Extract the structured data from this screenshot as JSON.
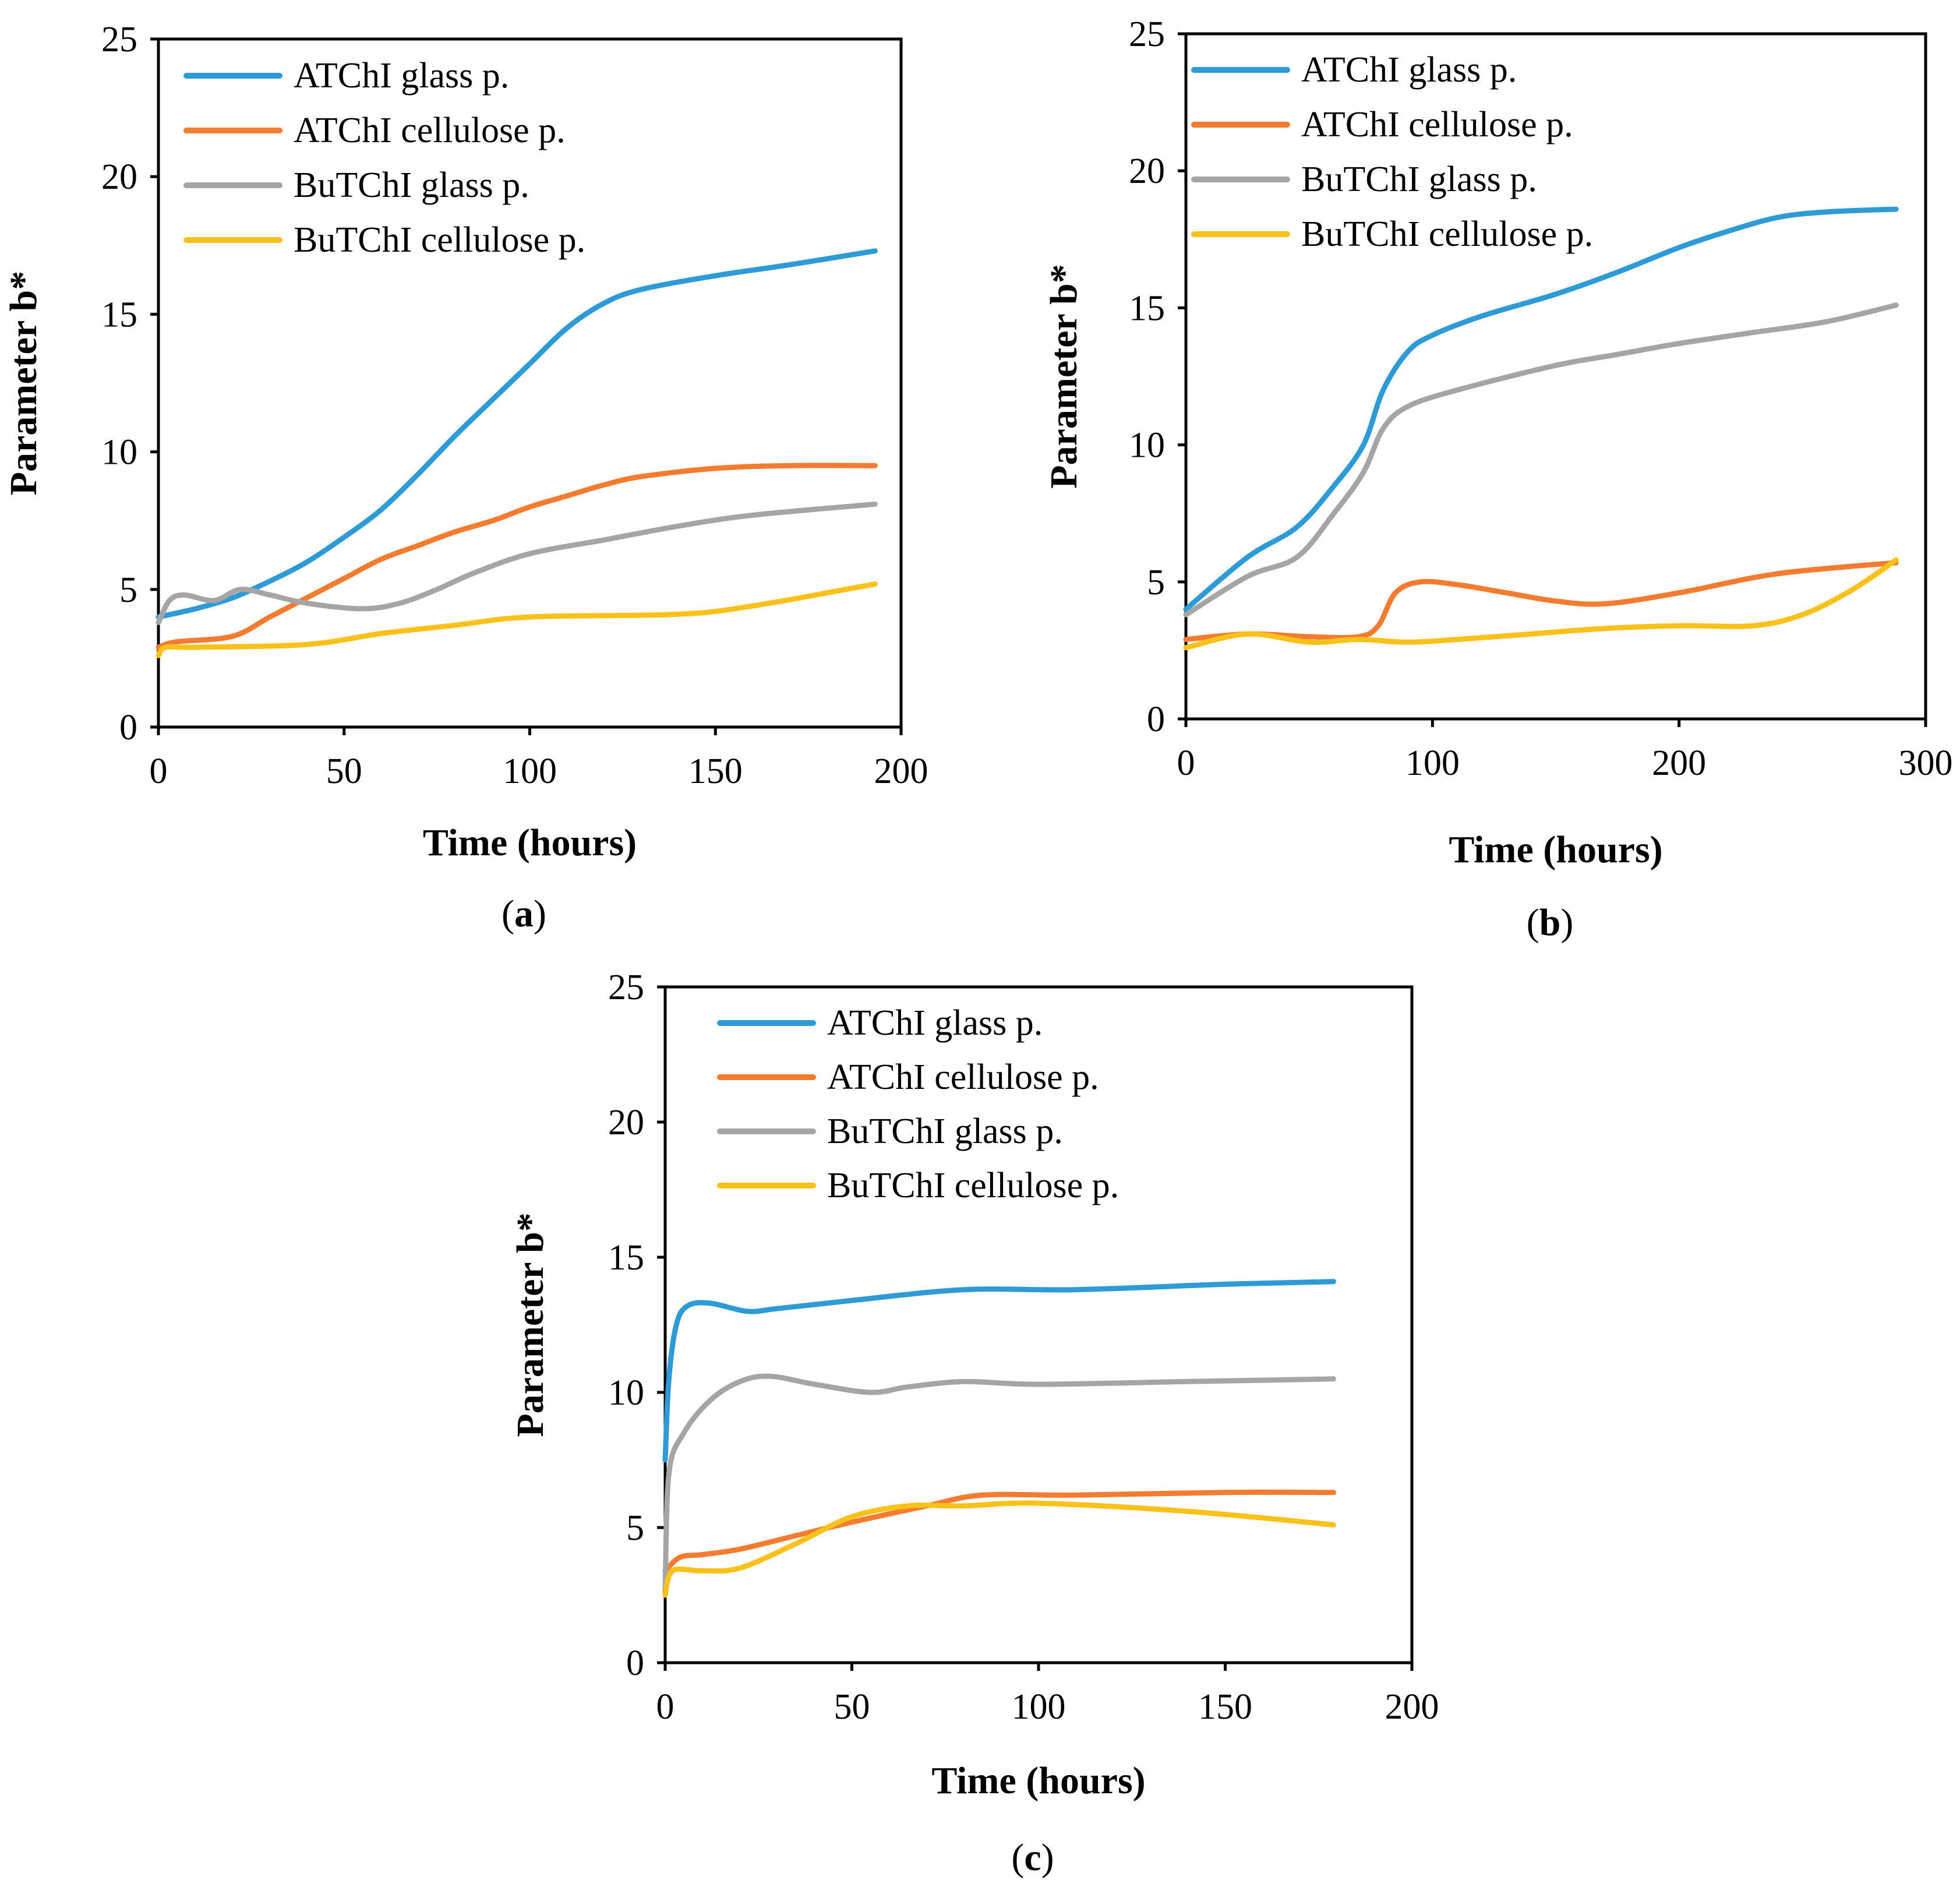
{
  "colors": {
    "atchi_glass": "#2E9BD6",
    "atchi_cellulose": "#F47C30",
    "butchi_glass": "#A5A5A5",
    "butchi_cellulose": "#FBC11B"
  },
  "chart_data": [
    {
      "type": "line",
      "panel_label": "a",
      "title": "",
      "xlabel": "Time (hours)",
      "ylabel": "Parameter b*",
      "xlim": [
        0,
        200
      ],
      "ylim": [
        0,
        25
      ],
      "xticks": [
        0,
        50,
        100,
        150,
        200
      ],
      "yticks": [
        0,
        5,
        10,
        15,
        20,
        25
      ],
      "legend_position": "top-left",
      "series": [
        {
          "name": "ATChI glass p.",
          "color_key": "atchi_glass",
          "points": [
            [
              0,
              4.0
            ],
            [
              10,
              4.3
            ],
            [
              20,
              4.7
            ],
            [
              30,
              5.3
            ],
            [
              40,
              6.0
            ],
            [
              50,
              6.9
            ],
            [
              60,
              7.9
            ],
            [
              70,
              9.2
            ],
            [
              80,
              10.6
            ],
            [
              90,
              11.9
            ],
            [
              100,
              13.2
            ],
            [
              110,
              14.5
            ],
            [
              120,
              15.4
            ],
            [
              130,
              15.9
            ],
            [
              150,
              16.4
            ],
            [
              170,
              16.8
            ],
            [
              193,
              17.3
            ]
          ]
        },
        {
          "name": "ATChI cellulose p.",
          "color_key": "atchi_cellulose",
          "points": [
            [
              0,
              2.9
            ],
            [
              5,
              3.1
            ],
            [
              20,
              3.3
            ],
            [
              30,
              4.0
            ],
            [
              40,
              4.7
            ],
            [
              50,
              5.4
            ],
            [
              60,
              6.1
            ],
            [
              70,
              6.6
            ],
            [
              80,
              7.1
            ],
            [
              90,
              7.5
            ],
            [
              100,
              8.0
            ],
            [
              110,
              8.4
            ],
            [
              120,
              8.8
            ],
            [
              130,
              9.1
            ],
            [
              150,
              9.4
            ],
            [
              170,
              9.5
            ],
            [
              193,
              9.5
            ]
          ]
        },
        {
          "name": "BuTChI glass p.",
          "color_key": "butchi_glass",
          "points": [
            [
              0,
              3.8
            ],
            [
              3,
              4.6
            ],
            [
              7,
              4.8
            ],
            [
              15,
              4.6
            ],
            [
              22,
              5.0
            ],
            [
              30,
              4.8
            ],
            [
              40,
              4.5
            ],
            [
              55,
              4.3
            ],
            [
              65,
              4.5
            ],
            [
              75,
              5.0
            ],
            [
              85,
              5.6
            ],
            [
              100,
              6.3
            ],
            [
              120,
              6.8
            ],
            [
              140,
              7.3
            ],
            [
              160,
              7.7
            ],
            [
              193,
              8.1
            ]
          ]
        },
        {
          "name": "BuTChI cellulose p.",
          "color_key": "butchi_cellulose",
          "points": [
            [
              0,
              2.6
            ],
            [
              2,
              2.9
            ],
            [
              10,
              2.9
            ],
            [
              40,
              3.0
            ],
            [
              60,
              3.4
            ],
            [
              80,
              3.7
            ],
            [
              100,
              4.0
            ],
            [
              140,
              4.1
            ],
            [
              160,
              4.4
            ],
            [
              193,
              5.2
            ]
          ]
        }
      ]
    },
    {
      "type": "line",
      "panel_label": "b",
      "title": "",
      "xlabel": "Time (hours)",
      "ylabel": "Parameter b*",
      "xlim": [
        0,
        300
      ],
      "ylim": [
        0,
        25
      ],
      "xticks": [
        0,
        100,
        200,
        300
      ],
      "yticks": [
        0,
        5,
        10,
        15,
        20,
        25
      ],
      "legend_position": "top-left",
      "series": [
        {
          "name": "ATChI glass p.",
          "color_key": "atchi_glass",
          "points": [
            [
              0,
              4.0
            ],
            [
              25,
              5.9
            ],
            [
              45,
              7.0
            ],
            [
              60,
              8.5
            ],
            [
              72,
              10.0
            ],
            [
              80,
              12.0
            ],
            [
              90,
              13.4
            ],
            [
              100,
              14.0
            ],
            [
              120,
              14.7
            ],
            [
              150,
              15.5
            ],
            [
              175,
              16.3
            ],
            [
              200,
              17.2
            ],
            [
              220,
              17.8
            ],
            [
              240,
              18.3
            ],
            [
              260,
              18.5
            ],
            [
              288,
              18.6
            ]
          ]
        },
        {
          "name": "ATChI cellulose p.",
          "color_key": "atchi_cellulose",
          "points": [
            [
              0,
              2.9
            ],
            [
              25,
              3.1
            ],
            [
              50,
              3.0
            ],
            [
              70,
              3.0
            ],
            [
              78,
              3.4
            ],
            [
              85,
              4.6
            ],
            [
              95,
              5.0
            ],
            [
              110,
              4.9
            ],
            [
              130,
              4.6
            ],
            [
              150,
              4.3
            ],
            [
              170,
              4.2
            ],
            [
              200,
              4.6
            ],
            [
              240,
              5.3
            ],
            [
              288,
              5.7
            ]
          ]
        },
        {
          "name": "BuTChI glass p.",
          "color_key": "butchi_glass",
          "points": [
            [
              0,
              3.8
            ],
            [
              25,
              5.2
            ],
            [
              45,
              5.9
            ],
            [
              60,
              7.5
            ],
            [
              72,
              9.0
            ],
            [
              80,
              10.6
            ],
            [
              90,
              11.4
            ],
            [
              110,
              12.0
            ],
            [
              150,
              12.9
            ],
            [
              175,
              13.3
            ],
            [
              200,
              13.7
            ],
            [
              230,
              14.1
            ],
            [
              260,
              14.5
            ],
            [
              288,
              15.1
            ]
          ]
        },
        {
          "name": "BuTChI cellulose p.",
          "color_key": "butchi_cellulose",
          "points": [
            [
              0,
              2.6
            ],
            [
              25,
              3.1
            ],
            [
              50,
              2.8
            ],
            [
              70,
              2.9
            ],
            [
              90,
              2.8
            ],
            [
              110,
              2.9
            ],
            [
              140,
              3.1
            ],
            [
              170,
              3.3
            ],
            [
              200,
              3.4
            ],
            [
              230,
              3.4
            ],
            [
              250,
              3.8
            ],
            [
              270,
              4.7
            ],
            [
              288,
              5.8
            ]
          ]
        }
      ]
    },
    {
      "type": "line",
      "panel_label": "c",
      "title": "",
      "xlabel": "Time (hours)",
      "ylabel": "Parameter b*",
      "xlim": [
        0,
        200
      ],
      "ylim": [
        0,
        25
      ],
      "xticks": [
        0,
        50,
        100,
        150,
        200
      ],
      "yticks": [
        0,
        5,
        10,
        15,
        20,
        25
      ],
      "legend_position": "top-left",
      "series": [
        {
          "name": "ATChI glass p.",
          "color_key": "atchi_glass",
          "points": [
            [
              0,
              7.5
            ],
            [
              1,
              10.5
            ],
            [
              3,
              12.5
            ],
            [
              6,
              13.2
            ],
            [
              12,
              13.3
            ],
            [
              22,
              13.0
            ],
            [
              30,
              13.1
            ],
            [
              50,
              13.4
            ],
            [
              80,
              13.8
            ],
            [
              110,
              13.8
            ],
            [
              150,
              14.0
            ],
            [
              179,
              14.1
            ]
          ]
        },
        {
          "name": "ATChI cellulose p.",
          "color_key": "atchi_cellulose",
          "points": [
            [
              0,
              3.4
            ],
            [
              4,
              3.9
            ],
            [
              10,
              4.0
            ],
            [
              20,
              4.2
            ],
            [
              35,
              4.7
            ],
            [
              50,
              5.2
            ],
            [
              70,
              5.8
            ],
            [
              85,
              6.2
            ],
            [
              110,
              6.2
            ],
            [
              150,
              6.3
            ],
            [
              179,
              6.3
            ]
          ]
        },
        {
          "name": "BuTChI glass p.",
          "color_key": "butchi_glass",
          "points": [
            [
              0,
              2.6
            ],
            [
              1,
              7.0
            ],
            [
              5,
              8.5
            ],
            [
              12,
              9.7
            ],
            [
              20,
              10.4
            ],
            [
              28,
              10.6
            ],
            [
              40,
              10.3
            ],
            [
              55,
              10.0
            ],
            [
              65,
              10.2
            ],
            [
              80,
              10.4
            ],
            [
              100,
              10.3
            ],
            [
              140,
              10.4
            ],
            [
              179,
              10.5
            ]
          ]
        },
        {
          "name": "BuTChI cellulose p.",
          "color_key": "butchi_cellulose",
          "points": [
            [
              0,
              2.5
            ],
            [
              2,
              3.4
            ],
            [
              10,
              3.4
            ],
            [
              20,
              3.5
            ],
            [
              35,
              4.4
            ],
            [
              50,
              5.4
            ],
            [
              65,
              5.8
            ],
            [
              80,
              5.8
            ],
            [
              100,
              5.9
            ],
            [
              140,
              5.6
            ],
            [
              179,
              5.1
            ]
          ]
        }
      ]
    }
  ]
}
